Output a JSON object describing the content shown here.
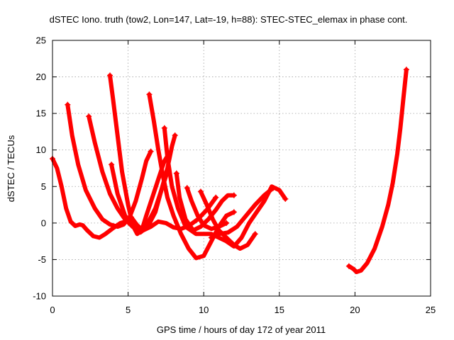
{
  "chart_data": {
    "type": "line",
    "title": "dSTEC Iono. truth (tow2, Lon=147, Lat=-19, h=88): STEC-STEC_elemax in phase cont.",
    "xlabel": "GPS time / hours of day 172 of year 2011",
    "ylabel": "dSTEC  / TECUs",
    "xlim": [
      0,
      25
    ],
    "ylim": [
      -10,
      25
    ],
    "xticks": [
      0,
      5,
      10,
      15,
      20,
      25
    ],
    "yticks": [
      -10,
      -5,
      0,
      5,
      10,
      15,
      20,
      25
    ],
    "x_tick_labels": [
      "0",
      "5",
      "10",
      "15",
      "20",
      "25"
    ],
    "y_tick_labels": [
      "-10",
      "-5",
      "0",
      "5",
      "10",
      "15",
      "20",
      "25"
    ],
    "grid": true,
    "legend": "none",
    "marker": "plus",
    "color": "#ff0000",
    "series": [
      {
        "values": [
          [
            0.0,
            8.8
          ],
          [
            0.3,
            7.5
          ],
          [
            0.6,
            5.0
          ],
          [
            0.9,
            2.0
          ],
          [
            1.2,
            0.2
          ],
          [
            1.5,
            -0.4
          ],
          [
            1.8,
            -0.2
          ],
          [
            2.0,
            -0.3
          ],
          [
            2.3,
            -1.0
          ],
          [
            2.7,
            -1.8
          ],
          [
            3.1,
            -2.0
          ],
          [
            3.5,
            -1.5
          ],
          [
            4.0,
            -0.7
          ],
          [
            4.5,
            0.0
          ],
          [
            5.0,
            0.3
          ]
        ]
      },
      {
        "values": [
          [
            1.0,
            16.2
          ],
          [
            1.3,
            12.0
          ],
          [
            1.7,
            8.0
          ],
          [
            2.2,
            4.5
          ],
          [
            2.8,
            2.0
          ],
          [
            3.3,
            0.5
          ],
          [
            3.8,
            -0.2
          ],
          [
            4.3,
            -0.5
          ],
          [
            4.7,
            -0.2
          ],
          [
            5.1,
            0.8
          ],
          [
            5.5,
            3.0
          ],
          [
            5.9,
            6.0
          ],
          [
            6.2,
            8.5
          ],
          [
            6.5,
            9.8
          ]
        ]
      },
      {
        "values": [
          [
            2.4,
            14.6
          ],
          [
            2.8,
            11.0
          ],
          [
            3.3,
            7.0
          ],
          [
            3.8,
            4.0
          ],
          [
            4.3,
            2.0
          ],
          [
            4.8,
            0.5
          ],
          [
            5.3,
            -0.5
          ],
          [
            5.8,
            -1.0
          ],
          [
            6.3,
            0.0
          ],
          [
            6.8,
            2.0
          ],
          [
            7.2,
            4.5
          ],
          [
            7.6,
            7.0
          ]
        ]
      },
      {
        "values": [
          [
            3.8,
            20.2
          ],
          [
            4.0,
            17.0
          ],
          [
            4.3,
            12.0
          ],
          [
            4.6,
            7.0
          ],
          [
            5.0,
            2.5
          ],
          [
            5.3,
            -0.3
          ],
          [
            5.6,
            -1.5
          ],
          [
            5.9,
            -1.0
          ],
          [
            6.2,
            1.0
          ],
          [
            6.6,
            3.5
          ],
          [
            7.0,
            6.0
          ],
          [
            7.4,
            8.5
          ],
          [
            7.7,
            9.5
          ]
        ]
      },
      {
        "values": [
          [
            3.9,
            8.0
          ],
          [
            4.3,
            4.0
          ],
          [
            4.8,
            1.0
          ],
          [
            5.3,
            -0.5
          ],
          [
            5.8,
            -1.3
          ],
          [
            6.3,
            -0.5
          ],
          [
            6.8,
            1.5
          ],
          [
            7.2,
            4.5
          ],
          [
            7.6,
            7.5
          ],
          [
            7.9,
            10.5
          ],
          [
            8.1,
            12.0
          ]
        ]
      },
      {
        "values": [
          [
            6.4,
            17.6
          ],
          [
            6.7,
            14.0
          ],
          [
            7.0,
            10.0
          ],
          [
            7.3,
            6.5
          ],
          [
            7.6,
            3.5
          ],
          [
            8.0,
            1.0
          ],
          [
            8.5,
            -1.5
          ],
          [
            9.0,
            -3.5
          ],
          [
            9.5,
            -4.8
          ],
          [
            10.0,
            -4.5
          ],
          [
            10.5,
            -2.5
          ],
          [
            11.0,
            -0.5
          ],
          [
            11.5,
            1.0
          ],
          [
            12.0,
            1.5
          ]
        ]
      },
      {
        "values": [
          [
            7.4,
            13.0
          ],
          [
            7.6,
            9.0
          ],
          [
            7.9,
            5.0
          ],
          [
            8.3,
            2.0
          ],
          [
            8.8,
            -0.5
          ],
          [
            9.5,
            -1.5
          ],
          [
            10.5,
            -1.5
          ],
          [
            11.5,
            -2.5
          ],
          [
            12.0,
            -3.2
          ],
          [
            12.5,
            -2.0
          ],
          [
            13.0,
            0.0
          ],
          [
            13.5,
            1.5
          ],
          [
            14.0,
            3.0
          ],
          [
            14.5,
            5.0
          ],
          [
            15.0,
            4.5
          ],
          [
            15.4,
            3.3
          ]
        ]
      },
      {
        "values": [
          [
            8.2,
            6.8
          ],
          [
            8.4,
            3.5
          ],
          [
            8.8,
            0.5
          ],
          [
            9.3,
            -1.0
          ],
          [
            9.8,
            -0.5
          ],
          [
            10.3,
            0.5
          ],
          [
            10.8,
            1.8
          ],
          [
            11.2,
            3.0
          ],
          [
            11.6,
            3.8
          ],
          [
            12.0,
            3.8
          ]
        ]
      },
      {
        "values": [
          [
            5.2,
            0.8
          ],
          [
            5.6,
            -0.3
          ],
          [
            6.0,
            -1.0
          ],
          [
            6.5,
            -0.5
          ],
          [
            7.0,
            0.2
          ],
          [
            7.5,
            0.0
          ],
          [
            8.0,
            -0.6
          ],
          [
            8.5,
            -0.8
          ],
          [
            9.0,
            -0.4
          ],
          [
            9.6,
            0.5
          ],
          [
            10.2,
            1.8
          ],
          [
            10.8,
            3.5
          ]
        ]
      },
      {
        "values": [
          [
            9.8,
            4.3
          ],
          [
            10.2,
            2.5
          ],
          [
            10.6,
            0.5
          ],
          [
            11.0,
            -1.0
          ],
          [
            11.5,
            -2.0
          ],
          [
            12.0,
            -3.0
          ],
          [
            12.4,
            -3.5
          ],
          [
            12.9,
            -3.0
          ],
          [
            13.4,
            -1.5
          ]
        ]
      },
      {
        "values": [
          [
            8.9,
            4.8
          ],
          [
            9.2,
            3.0
          ],
          [
            9.6,
            1.0
          ],
          [
            10.0,
            -0.3
          ],
          [
            10.5,
            -0.8
          ],
          [
            11.0,
            -0.5
          ],
          [
            11.5,
            0.0
          ]
        ]
      },
      {
        "values": [
          [
            10.5,
            -2.0
          ],
          [
            11.0,
            -1.5
          ],
          [
            11.6,
            -1.3
          ],
          [
            12.2,
            -0.5
          ],
          [
            12.8,
            1.0
          ],
          [
            13.4,
            2.5
          ],
          [
            14.0,
            3.8
          ],
          [
            14.6,
            4.8
          ]
        ]
      },
      {
        "values": [
          [
            19.6,
            -5.9
          ],
          [
            19.9,
            -6.3
          ],
          [
            20.1,
            -6.7
          ],
          [
            20.4,
            -6.5
          ],
          [
            20.8,
            -5.5
          ],
          [
            21.3,
            -3.5
          ],
          [
            21.8,
            -0.5
          ],
          [
            22.2,
            2.5
          ],
          [
            22.5,
            5.5
          ],
          [
            22.8,
            9.5
          ],
          [
            23.0,
            13.0
          ],
          [
            23.2,
            17.0
          ],
          [
            23.4,
            21.0
          ]
        ]
      }
    ]
  }
}
